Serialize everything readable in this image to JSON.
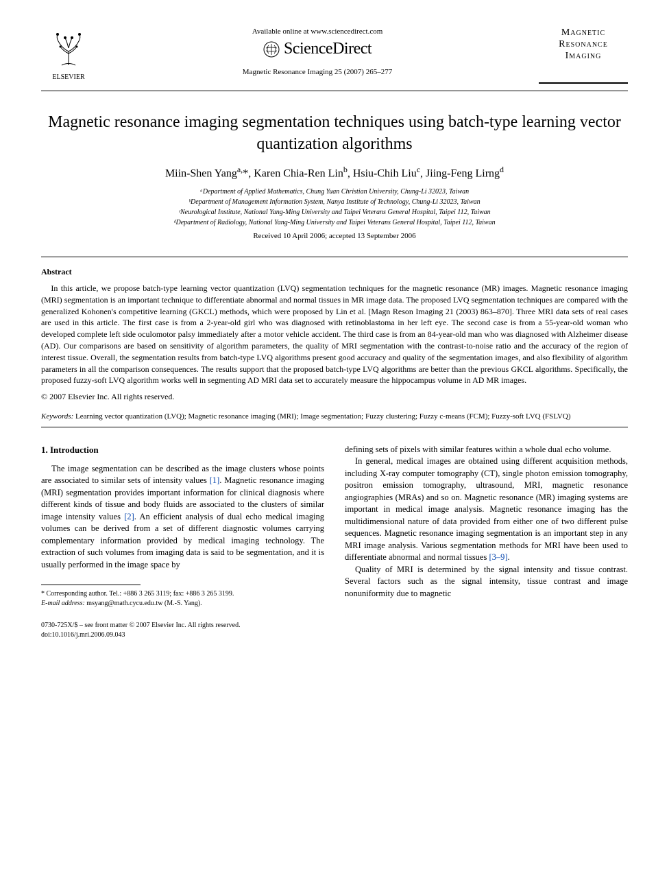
{
  "header": {
    "publisher_name": "ELSEVIER",
    "available_text": "Available online at www.sciencedirect.com",
    "sciencedirect_label": "ScienceDirect",
    "journal_reference": "Magnetic Resonance Imaging 25 (2007) 265–277",
    "journal_logo_line1": "Magnetic",
    "journal_logo_line2": "Resonance",
    "journal_logo_line3": "Imaging"
  },
  "article": {
    "title": "Magnetic resonance imaging segmentation techniques using batch-type learning vector quantization algorithms",
    "authors_html": "Miin-Shen Yang<sup>a,</sup>*, Karen Chia-Ren Lin<sup>b</sup>, Hsiu-Chih Liu<sup>c</sup>, Jiing-Feng Lirng<sup>d</sup>",
    "affiliations": [
      "ᵃDepartment of Applied Mathematics, Chung Yuan Christian University, Chung-Li 32023, Taiwan",
      "ᵇDepartment of Management Information System, Nanya Institute of Technology, Chung-Li 32023, Taiwan",
      "ᶜNeurological Institute, National Yang-Ming University and Taipei Veterans General Hospital, Taipei 112, Taiwan",
      "ᵈDepartment of Radiology, National Yang-Ming University and Taipei Veterans General Hospital, Taipei 112, Taiwan"
    ],
    "dates": "Received 10 April 2006; accepted 13 September 2006"
  },
  "abstract": {
    "heading": "Abstract",
    "body": "In this article, we propose batch-type learning vector quantization (LVQ) segmentation techniques for the magnetic resonance (MR) images. Magnetic resonance imaging (MRI) segmentation is an important technique to differentiate abnormal and normal tissues in MR image data. The proposed LVQ segmentation techniques are compared with the generalized Kohonen's competitive learning (GKCL) methods, which were proposed by Lin et al. [Magn Reson Imaging 21 (2003) 863–870]. Three MRI data sets of real cases are used in this article. The first case is from a 2-year-old girl who was diagnosed with retinoblastoma in her left eye. The second case is from a 55-year-old woman who developed complete left side oculomotor palsy immediately after a motor vehicle accident. The third case is from an 84-year-old man who was diagnosed with Alzheimer disease (AD). Our comparisons are based on sensitivity of algorithm parameters, the quality of MRI segmentation with the contrast-to-noise ratio and the accuracy of the region of interest tissue. Overall, the segmentation results from batch-type LVQ algorithms present good accuracy and quality of the segmentation images, and also flexibility of algorithm parameters in all the comparison consequences. The results support that the proposed batch-type LVQ algorithms are better than the previous GKCL algorithms. Specifically, the proposed fuzzy-soft LVQ algorithm works well in segmenting AD MRI data set to accurately measure the hippocampus volume in AD MR images.",
    "copyright": "© 2007 Elsevier Inc. All rights reserved."
  },
  "keywords": {
    "label": "Keywords:",
    "text": " Learning vector quantization (LVQ); Magnetic resonance imaging (MRI); Image segmentation; Fuzzy clustering; Fuzzy c-means (FCM); Fuzzy-soft LVQ (FSLVQ)"
  },
  "intro": {
    "heading": "1. Introduction",
    "col1_p1_a": "The image segmentation can be described as the image clusters whose points are associated to similar sets of intensity values ",
    "col1_p1_ref1": "[1]",
    "col1_p1_b": ". Magnetic resonance imaging (MRI) segmentation provides important information for clinical diagnosis where different kinds of tissue and body fluids are associated to the clusters of similar image intensity values ",
    "col1_p1_ref2": "[2]",
    "col1_p1_c": ". An efficient analysis of dual echo medical imaging volumes can be derived from a set of different diagnostic volumes carrying complementary information provided by medical imaging technology. The extraction of such volumes from imaging data is said to be segmentation, and it is usually performed in the image space by",
    "col2_p1": "defining sets of pixels with similar features within a whole dual echo volume.",
    "col2_p2_a": "In general, medical images are obtained using different acquisition methods, including X-ray computer tomography (CT), single photon emission tomography, positron emission tomography, ultrasound, MRI, magnetic resonance angiographies (MRAs) and so on. Magnetic resonance (MR) imaging systems are important in medical image analysis. Magnetic resonance imaging has the multidimensional nature of data provided from either one of two different pulse sequences. Magnetic resonance imaging segmentation is an important step in any MRI image analysis. Various segmentation methods for MRI have been used to differentiate abnormal and normal tissues ",
    "col2_p2_ref": "[3–9]",
    "col2_p2_b": ".",
    "col2_p3": "Quality of MRI is determined by the signal intensity and tissue contrast. Several factors such as the signal intensity, tissue contrast and image nonuniformity due to magnetic"
  },
  "footnote": {
    "corresponding": "* Corresponding author. Tel.: +886 3 265 3119; fax: +886 3 265 3199.",
    "email_label": "E-mail address:",
    "email": " msyang@math.cycu.edu.tw (M.-S. Yang)."
  },
  "doi": {
    "line1": "0730-725X/$ – see front matter © 2007 Elsevier Inc. All rights reserved.",
    "line2": "doi:10.1016/j.mri.2006.09.043"
  },
  "colors": {
    "text": "#000000",
    "link": "#0645ad",
    "background": "#ffffff"
  }
}
